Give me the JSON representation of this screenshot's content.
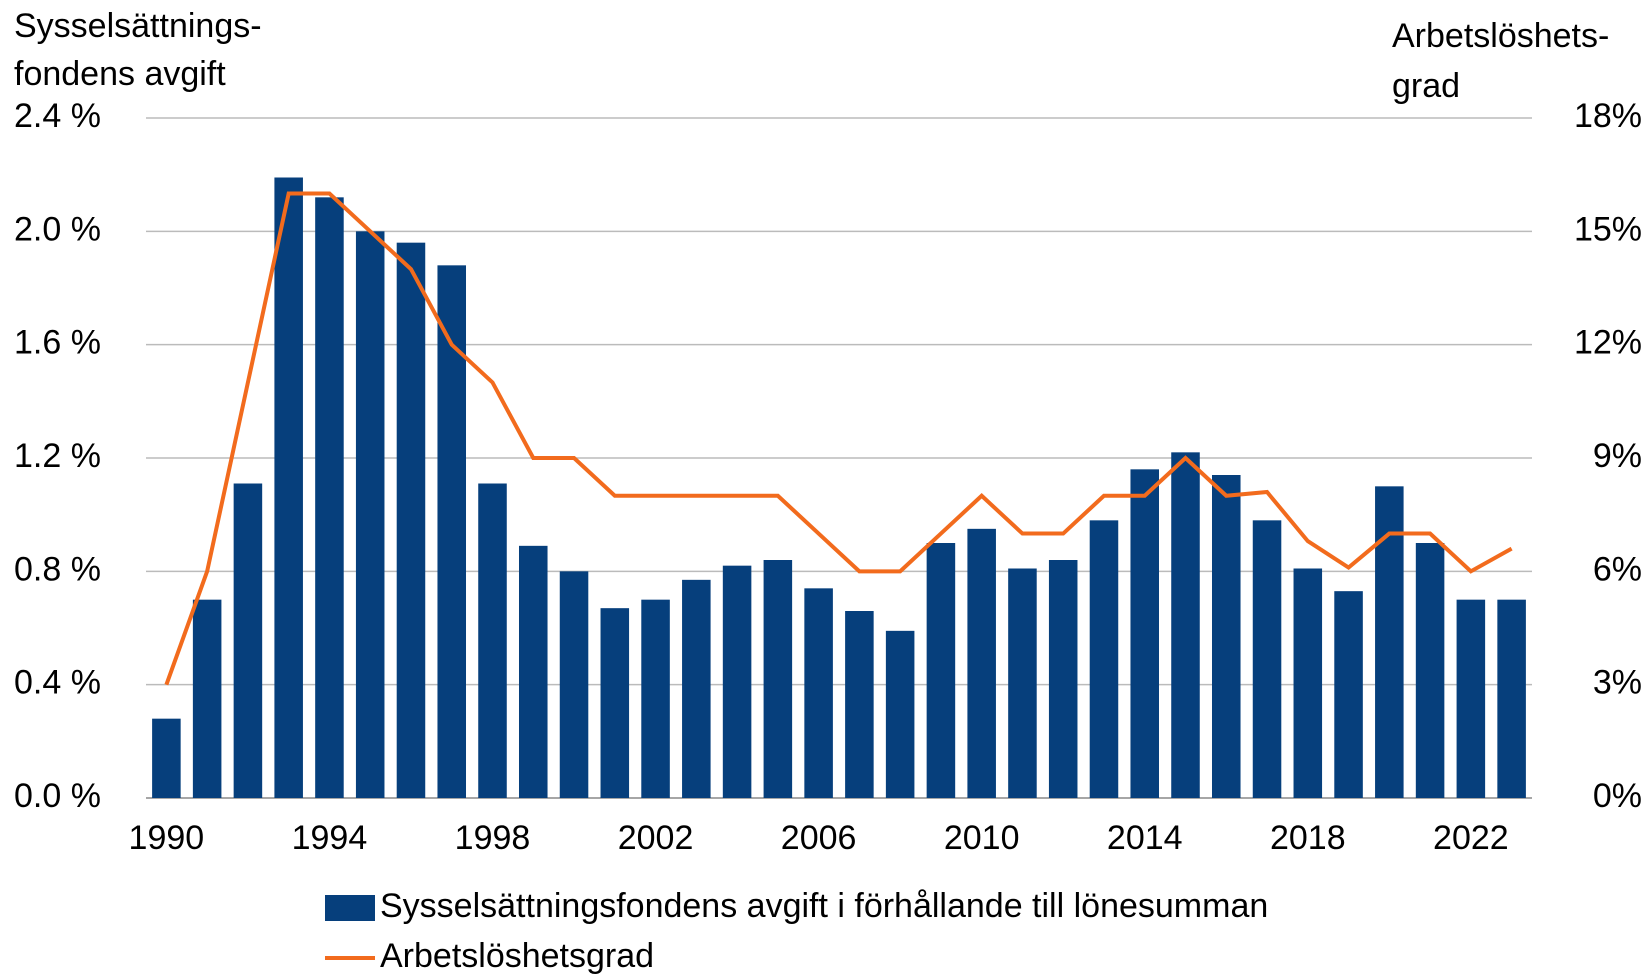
{
  "chart_data": {
    "type": "bar_line",
    "ylabel": [
      "Sysselsättnings-",
      "fondens avgift"
    ],
    "y2label": [
      "Arbetslöshets-",
      "grad"
    ],
    "categories": [
      "1990",
      null,
      null,
      null,
      "1994",
      null,
      null,
      null,
      "1998",
      null,
      null,
      null,
      "2002",
      null,
      null,
      null,
      "2006",
      null,
      null,
      null,
      "2010",
      null,
      null,
      null,
      "2014",
      null,
      null,
      null,
      "2018",
      null,
      null,
      null,
      "2022",
      null
    ],
    "series": [
      {
        "name": "Sysselsättningsfondens avgift i förhållande till lönesumman",
        "type": "bar",
        "color": "#063f7c",
        "values": [
          0.28,
          0.7,
          1.11,
          2.19,
          2.12,
          2.0,
          1.96,
          1.88,
          1.11,
          0.89,
          0.8,
          0.67,
          0.7,
          0.77,
          0.82,
          0.84,
          0.74,
          0.66,
          0.59,
          0.9,
          0.95,
          0.81,
          0.84,
          0.98,
          1.16,
          1.22,
          1.14,
          0.98,
          0.81,
          0.73,
          1.1,
          0.9,
          0.7,
          0.7
        ]
      },
      {
        "name": "Arbetslöshetsgrad",
        "type": "line",
        "axis": "y2",
        "color": "#f26b1d",
        "values": [
          3,
          6,
          11,
          16,
          16,
          15,
          14,
          12,
          11,
          9,
          9,
          8,
          8,
          8,
          8,
          8,
          7,
          6,
          6,
          7,
          8,
          7,
          7,
          8,
          8,
          9,
          8,
          8.1,
          6.8,
          6.1,
          7,
          7,
          6,
          6.6
        ]
      }
    ],
    "ylim": [
      0,
      2.4
    ],
    "yticks": [
      {
        "value": 0,
        "label": "0.0 %"
      },
      {
        "value": 0.4,
        "label": "0.4 %"
      },
      {
        "value": 0.8,
        "label": "0.8 %"
      },
      {
        "value": 1.2,
        "label": "1.2 %"
      },
      {
        "value": 1.6,
        "label": "1.6 %"
      },
      {
        "value": 2.0,
        "label": "2.0 %"
      },
      {
        "value": 2.4,
        "label": "2.4 %"
      }
    ],
    "y2lim": [
      0,
      18
    ],
    "y2ticks": [
      {
        "value": 0,
        "label": "0%"
      },
      {
        "value": 3,
        "label": "3%"
      },
      {
        "value": 6,
        "label": "6%"
      },
      {
        "value": 9,
        "label": "9%"
      },
      {
        "value": 12,
        "label": "12%"
      },
      {
        "value": 15,
        "label": "15%"
      },
      {
        "value": 18,
        "label": "18%"
      }
    ],
    "grid": true
  }
}
